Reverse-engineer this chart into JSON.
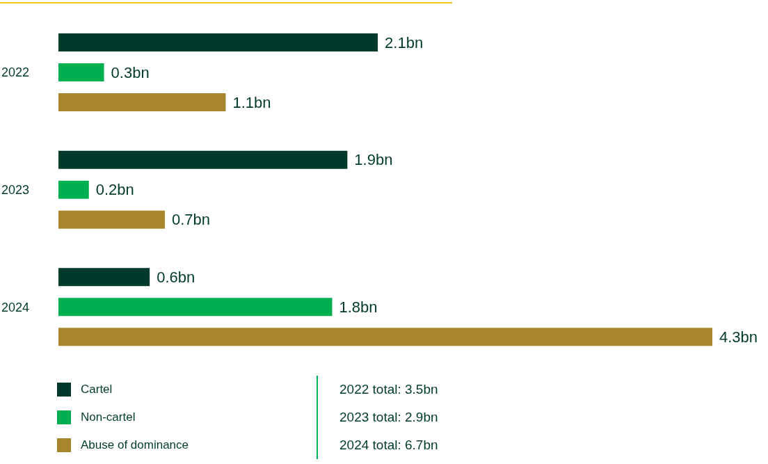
{
  "chart_data": {
    "type": "bar",
    "orientation": "horizontal",
    "categories": [
      "2022",
      "2023",
      "2024"
    ],
    "series": [
      {
        "name": "Cartel",
        "color": "#003a2b",
        "values": [
          2.1,
          1.9,
          0.6
        ],
        "value_labels": [
          "2.1bn",
          "1.9bn",
          "0.6bn"
        ]
      },
      {
        "name": "Non-cartel",
        "color": "#00b050",
        "values": [
          0.3,
          0.2,
          1.8
        ],
        "value_labels": [
          "0.3bn",
          "0.2bn",
          "1.8bn"
        ]
      },
      {
        "name": "Abuse of dominance",
        "color": "#a8862c",
        "values": [
          1.1,
          0.7,
          4.3
        ],
        "value_labels": [
          "1.1bn",
          "0.7bn",
          "4.3bn"
        ]
      }
    ],
    "legend": "bottom left",
    "grid": false,
    "annotations": [
      "2022 total: 3.5bn",
      "2023 total: 2.9bn",
      "2024 total: 6.7bn"
    ]
  }
}
